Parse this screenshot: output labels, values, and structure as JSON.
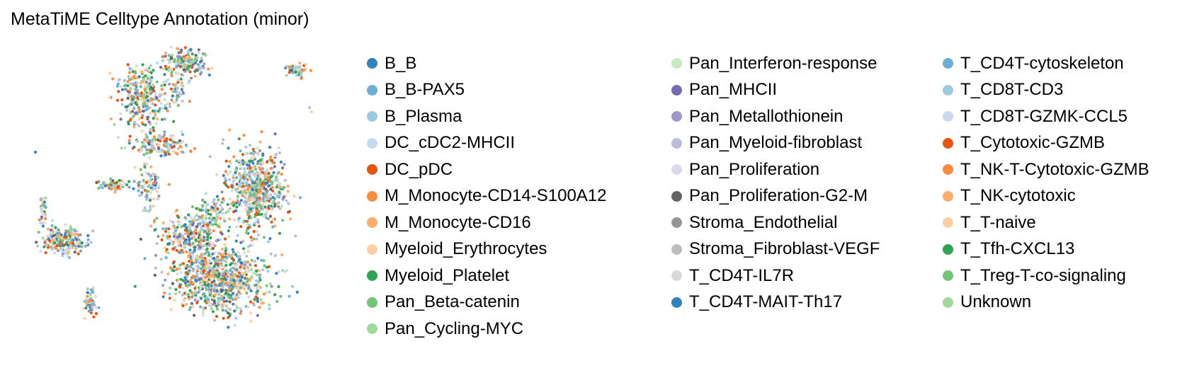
{
  "chart_data": {
    "type": "scatter",
    "title": "MetaTiME Celltype Annotation (minor)",
    "xlabel": "",
    "ylabel": "",
    "axes_visible": false,
    "grid": false,
    "legend_placement": "right",
    "legend_columns": 3,
    "categories": [
      {
        "name": "B_B",
        "color": "#3182bd"
      },
      {
        "name": "B_B-PAX5",
        "color": "#6baed6"
      },
      {
        "name": "B_Plasma",
        "color": "#9ecae1"
      },
      {
        "name": "DC_cDC2-MHCII",
        "color": "#c6dbef"
      },
      {
        "name": "DC_pDC",
        "color": "#e6550d"
      },
      {
        "name": "M_Monocyte-CD14-S100A12",
        "color": "#fd8d3c"
      },
      {
        "name": "M_Monocyte-CD16",
        "color": "#fdae6b"
      },
      {
        "name": "Myeloid_Erythrocytes",
        "color": "#fdd0a2"
      },
      {
        "name": "Myeloid_Platelet",
        "color": "#31a354"
      },
      {
        "name": "Pan_Beta-catenin",
        "color": "#74c476"
      },
      {
        "name": "Pan_Cycling-MYC",
        "color": "#a1d99b"
      },
      {
        "name": "Pan_Interferon-response",
        "color": "#c7e9c0"
      },
      {
        "name": "Pan_MHCII",
        "color": "#756bb1"
      },
      {
        "name": "Pan_Metallothionein",
        "color": "#9e9ac8"
      },
      {
        "name": "Pan_Myeloid-fibroblast",
        "color": "#bcbddc"
      },
      {
        "name": "Pan_Proliferation",
        "color": "#dadaeb"
      },
      {
        "name": "Pan_Proliferation-G2-M",
        "color": "#636363"
      },
      {
        "name": "Stroma_Endothelial",
        "color": "#969696"
      },
      {
        "name": "Stroma_Fibroblast-VEGF",
        "color": "#bdbdbd"
      },
      {
        "name": "T_CD4T-IL7R",
        "color": "#d9d9d9"
      },
      {
        "name": "T_CD4T-MAIT-Th17",
        "color": "#3182bd"
      },
      {
        "name": "T_CD4T-cytoskeleton",
        "color": "#6baed6"
      },
      {
        "name": "T_CD8T-CD3",
        "color": "#9ecae1"
      },
      {
        "name": "T_CD8T-GZMK-CCL5",
        "color": "#c6dbef"
      },
      {
        "name": "T_Cytotoxic-GZMB",
        "color": "#e6550d"
      },
      {
        "name": "T_NK-T-Cytotoxic-GZMB",
        "color": "#fd8d3c"
      },
      {
        "name": "T_NK-cytotoxic",
        "color": "#fdae6b"
      },
      {
        "name": "T_T-naive",
        "color": "#fdd0a2"
      },
      {
        "name": "T_Tfh-CXCL13",
        "color": "#31a354"
      },
      {
        "name": "T_Treg-T-co-signaling",
        "color": "#74c476"
      },
      {
        "name": "Unknown",
        "color": "#a1d99b"
      }
    ]
  }
}
